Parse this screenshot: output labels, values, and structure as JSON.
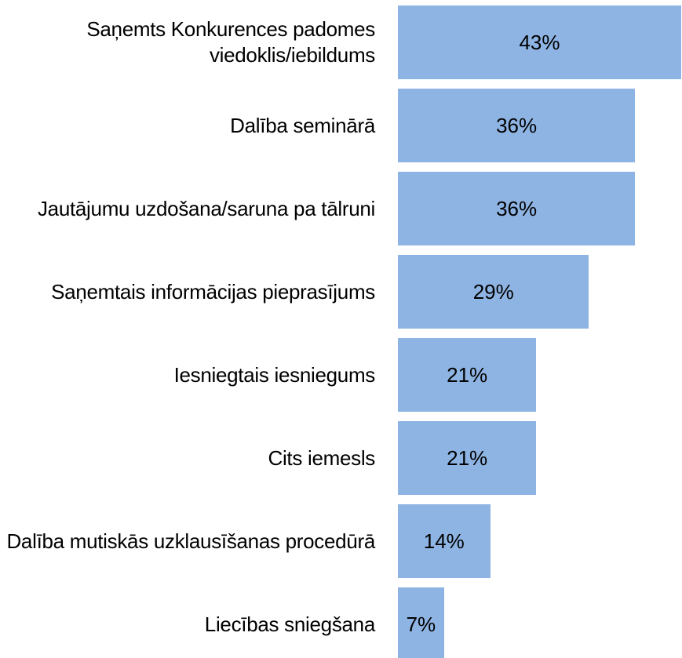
{
  "chart_data": {
    "type": "bar",
    "orientation": "horizontal",
    "categories": [
      "Saņemts Konkurences padomes viedoklis/iebildums",
      "Dalība seminārā",
      "Jautājumu uzdošana/saruna pa tālruni",
      "Saņemtais informācijas pieprasījums",
      "Iesniegtais iesniegums",
      "Cits iemesls",
      "Dalība mutiskās uzklausīšanas procedūrā",
      "Liecības sniegšana"
    ],
    "values": [
      43,
      36,
      36,
      29,
      21,
      21,
      14,
      7
    ],
    "value_labels": [
      "43%",
      "36%",
      "36%",
      "29%",
      "21%",
      "21%",
      "14%",
      "7%"
    ],
    "color": "#8eb4e3"
  }
}
